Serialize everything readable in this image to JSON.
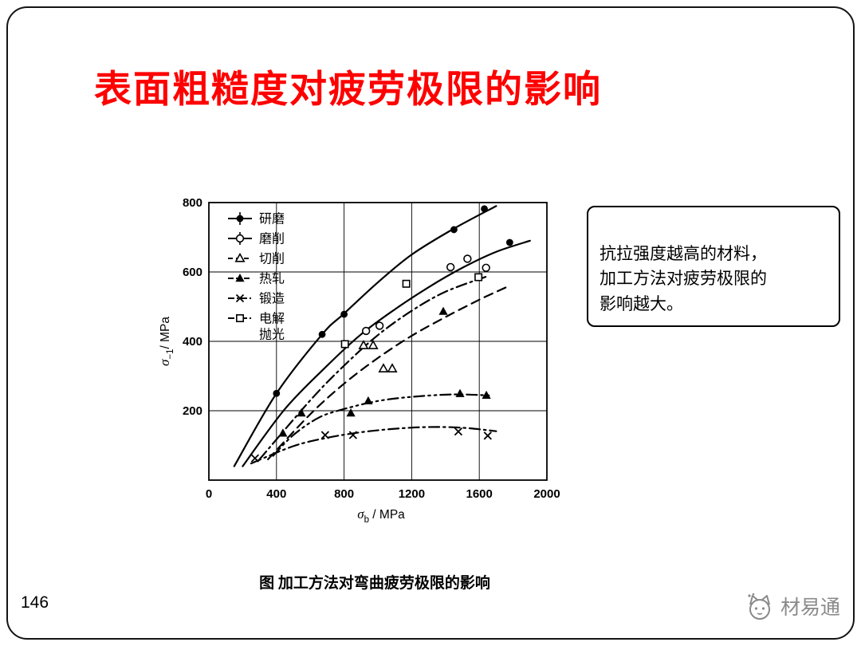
{
  "slide": {
    "title": "表面粗糙度对疲劳极限的影响",
    "callout_text": "抗拉强度越高的材料，\n加工方法对疲劳极限的\n影响越大。",
    "caption": "图 加工方法对弯曲疲劳极限的影响",
    "page_number": "146",
    "watermark_text": "材易通"
  },
  "colors": {
    "title": "#fe0000",
    "ink": "#000000",
    "watermark": "#8a8a8a"
  },
  "chart_data": {
    "type": "scatter",
    "title": "",
    "xlabel": {
      "sym": "σ",
      "sub": "b",
      "rest": " / MPa"
    },
    "ylabel": {
      "sym": "σ",
      "sub": "−1",
      "rest": "/ MPa"
    },
    "xlim": [
      0,
      2000
    ],
    "ylim": [
      0,
      800
    ],
    "xticks": [
      0,
      400,
      800,
      1200,
      1600,
      2000
    ],
    "yticks": [
      200,
      400,
      600,
      800
    ],
    "grid": true,
    "legend_position": "top-left",
    "series": [
      {
        "name": "研磨",
        "marker": "filled-circle",
        "line": "solid",
        "points": [
          [
            400,
            250
          ],
          [
            670,
            420
          ],
          [
            800,
            478
          ],
          [
            1450,
            722
          ],
          [
            1630,
            782
          ],
          [
            1780,
            685
          ]
        ],
        "curve": [
          [
            150,
            40
          ],
          [
            400,
            250
          ],
          [
            670,
            420
          ],
          [
            800,
            480
          ],
          [
            1000,
            570
          ],
          [
            1200,
            650
          ],
          [
            1450,
            725
          ],
          [
            1700,
            790
          ]
        ]
      },
      {
        "name": "磨削",
        "marker": "open-circle",
        "line": "solid",
        "points": [
          [
            930,
            430
          ],
          [
            1010,
            445
          ],
          [
            1430,
            614
          ],
          [
            1530,
            638
          ],
          [
            1640,
            612
          ]
        ],
        "curve": [
          [
            200,
            40
          ],
          [
            450,
            205
          ],
          [
            700,
            330
          ],
          [
            900,
            420
          ],
          [
            1100,
            492
          ],
          [
            1300,
            556
          ],
          [
            1500,
            612
          ],
          [
            1700,
            658
          ],
          [
            1900,
            690
          ]
        ]
      },
      {
        "name": "切削",
        "marker": "open-triangle",
        "line": "dashed",
        "points": [
          [
            915,
            388
          ],
          [
            972,
            388
          ],
          [
            1033,
            321
          ],
          [
            1085,
            321
          ]
        ],
        "curve": [
          [
            350,
            60
          ],
          [
            600,
            190
          ],
          [
            800,
            278
          ],
          [
            1000,
            352
          ],
          [
            1200,
            416
          ],
          [
            1400,
            470
          ],
          [
            1600,
            520
          ],
          [
            1760,
            556
          ]
        ]
      },
      {
        "name": "热轧",
        "marker": "filled-triangle",
        "line": "dash-dot-dot",
        "points": [
          [
            438,
            135
          ],
          [
            547,
            193
          ],
          [
            840,
            193
          ],
          [
            943,
            228
          ],
          [
            1387,
            486
          ],
          [
            1486,
            249
          ],
          [
            1642,
            244
          ]
        ],
        "curve": [
          [
            380,
            70
          ],
          [
            500,
            130
          ],
          [
            650,
            180
          ],
          [
            800,
            205
          ],
          [
            1000,
            228
          ],
          [
            1200,
            240
          ],
          [
            1450,
            247
          ],
          [
            1660,
            244
          ]
        ]
      },
      {
        "name": "锻造",
        "marker": "x",
        "line": "dash-dot",
        "points": [
          [
            273,
            63
          ],
          [
            688,
            130
          ],
          [
            853,
            130
          ],
          [
            1476,
            140
          ],
          [
            1650,
            128
          ]
        ],
        "curve": [
          [
            250,
            48
          ],
          [
            500,
            98
          ],
          [
            700,
            122
          ],
          [
            900,
            138
          ],
          [
            1100,
            148
          ],
          [
            1300,
            153
          ],
          [
            1500,
            151
          ],
          [
            1700,
            141
          ]
        ]
      },
      {
        "name": "电解抛光",
        "marker": "open-square",
        "line": "dash-dot",
        "points": [
          [
            805,
            392
          ],
          [
            1168,
            566
          ],
          [
            1595,
            585
          ]
        ],
        "curve": [
          [
            300,
            60
          ],
          [
            600,
            230
          ],
          [
            800,
            330
          ],
          [
            1000,
            418
          ],
          [
            1200,
            488
          ],
          [
            1400,
            543
          ],
          [
            1650,
            588
          ]
        ]
      }
    ]
  }
}
